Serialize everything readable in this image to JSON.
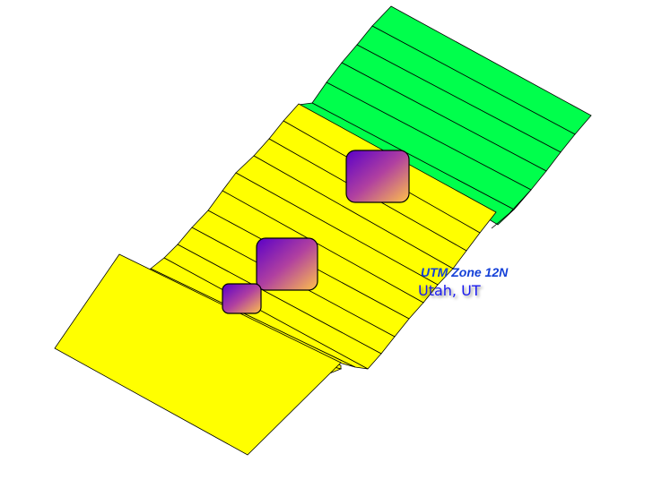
{
  "labels": {
    "zone": "UTM Zone 12N",
    "place": "Utah, UT"
  },
  "colors": {
    "green_tiles": "#00FF4C",
    "yellow_tiles": "#FFFF00",
    "tile_stroke": "#000000",
    "marker_gradient_start": "#5A00C8",
    "marker_gradient_end": "#FFC24A",
    "zone_label": "#1440D8",
    "place_label": "#1A1AF0"
  },
  "legend": {
    "tile_colors": [
      "green",
      "yellow"
    ],
    "marker_count": 3
  }
}
